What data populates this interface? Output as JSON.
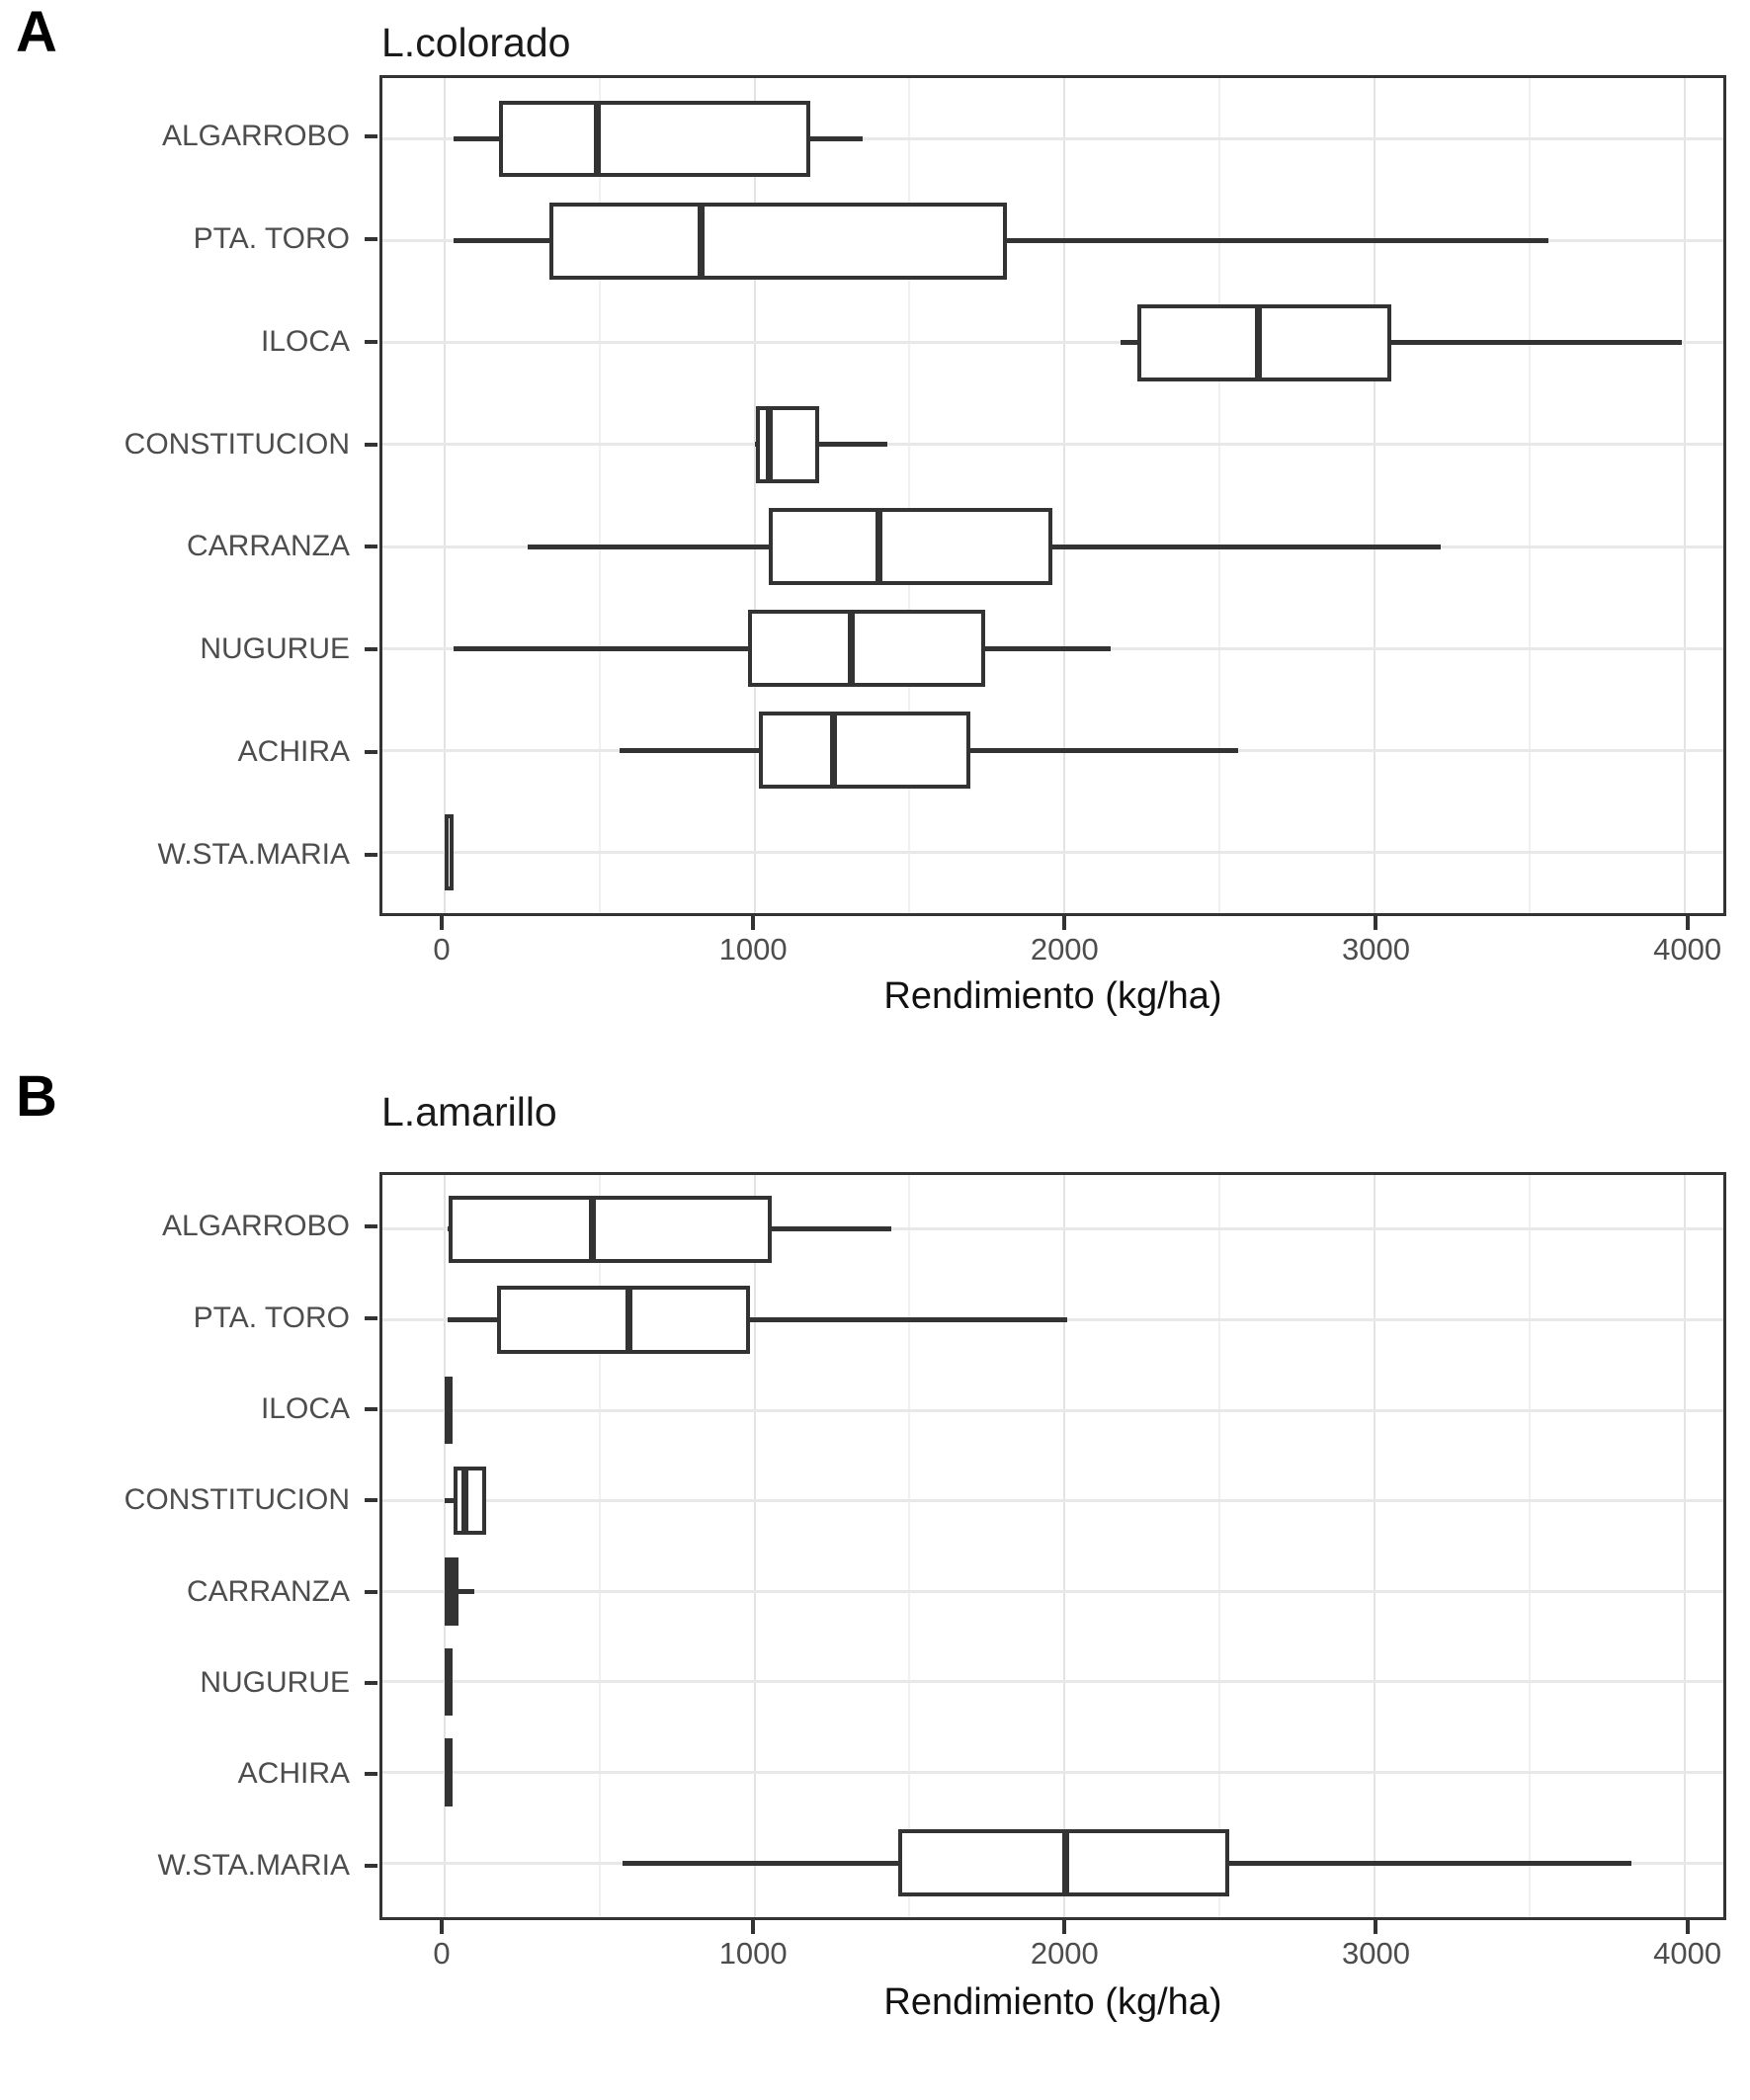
{
  "figure": {
    "background": "#ffffff"
  },
  "style_colors": {
    "box_border": "#333333",
    "grid_major": "#e3e3e3",
    "grid_minor": "#f0f0f0",
    "axis_text": "#4d4d4d",
    "title_text": "#1a1a1a"
  },
  "chart_data": [
    {
      "type": "boxplot",
      "orientation": "horizontal",
      "panel_label": "A",
      "title": "L.colorado",
      "xlabel": "Rendimiento (kg/ha)",
      "ylabel": "",
      "xlim": [
        -200,
        4125
      ],
      "grid": true,
      "axis": {
        "major_ticks": [
          0,
          1000,
          2000,
          3000,
          4000
        ],
        "minor_ticks": [
          500,
          1500,
          2500,
          3500
        ]
      },
      "categories": [
        "ALGARROBO",
        "PTA. TORO",
        "ILOCA",
        "CONSTITUCION",
        "CARRANZA",
        "NUGURUE",
        "ACHIRA",
        "W.STA.MARIA"
      ],
      "series": [
        {
          "category": "ALGARROBO",
          "min": 30,
          "q1": 175,
          "median": 490,
          "q3": 1180,
          "max": 1350
        },
        {
          "category": "PTA. TORO",
          "min": 30,
          "q1": 340,
          "median": 825,
          "q3": 1815,
          "max": 3560
        },
        {
          "category": "ILOCA",
          "min": 2180,
          "q1": 2235,
          "median": 2625,
          "q3": 3055,
          "max": 3990
        },
        {
          "category": "CONSTITUCION",
          "min": 1000,
          "q1": 1005,
          "median": 1040,
          "q3": 1210,
          "max": 1430
        },
        {
          "category": "CARRANZA",
          "min": 270,
          "q1": 1045,
          "median": 1400,
          "q3": 1960,
          "max": 3215
        },
        {
          "category": "NUGURUE",
          "min": 30,
          "q1": 980,
          "median": 1310,
          "q3": 1745,
          "max": 2150
        },
        {
          "category": "ACHIRA",
          "min": 565,
          "q1": 1015,
          "median": 1250,
          "q3": 1695,
          "max": 2560
        },
        {
          "category": "W.STA.MARIA",
          "min": 0,
          "q1": 0,
          "median": 15,
          "q3": 30,
          "max": 30
        }
      ]
    },
    {
      "type": "boxplot",
      "orientation": "horizontal",
      "panel_label": "B",
      "title": "L.amarillo",
      "xlabel": "Rendimiento (kg/ha)",
      "ylabel": "",
      "xlim": [
        -200,
        4125
      ],
      "grid": true,
      "axis": {
        "major_ticks": [
          0,
          1000,
          2000,
          3000,
          4000
        ],
        "minor_ticks": [
          500,
          1500,
          2500,
          3500
        ]
      },
      "categories": [
        "ALGARROBO",
        "PTA. TORO",
        "ILOCA",
        "CONSTITUCION",
        "CARRANZA",
        "NUGURUE",
        "ACHIRA",
        "W.STA.MARIA"
      ],
      "series": [
        {
          "category": "ALGARROBO",
          "min": 10,
          "q1": 15,
          "median": 475,
          "q3": 1055,
          "max": 1440
        },
        {
          "category": "PTA. TORO",
          "min": 10,
          "q1": 170,
          "median": 595,
          "q3": 985,
          "max": 2010
        },
        {
          "category": "ILOCA",
          "min": 0,
          "q1": 0,
          "median": 10,
          "q3": 25,
          "max": 25
        },
        {
          "category": "CONSTITUCION",
          "min": 0,
          "q1": 30,
          "median": 60,
          "q3": 135,
          "max": 135
        },
        {
          "category": "CARRANZA",
          "min": 0,
          "q1": 0,
          "median": 20,
          "q3": 45,
          "max": 95
        },
        {
          "category": "NUGURUE",
          "min": 0,
          "q1": 0,
          "median": 10,
          "q3": 25,
          "max": 25
        },
        {
          "category": "ACHIRA",
          "min": 0,
          "q1": 0,
          "median": 10,
          "q3": 25,
          "max": 25
        },
        {
          "category": "W.STA.MARIA",
          "min": 575,
          "q1": 1465,
          "median": 2005,
          "q3": 2530,
          "max": 3830
        }
      ]
    }
  ]
}
